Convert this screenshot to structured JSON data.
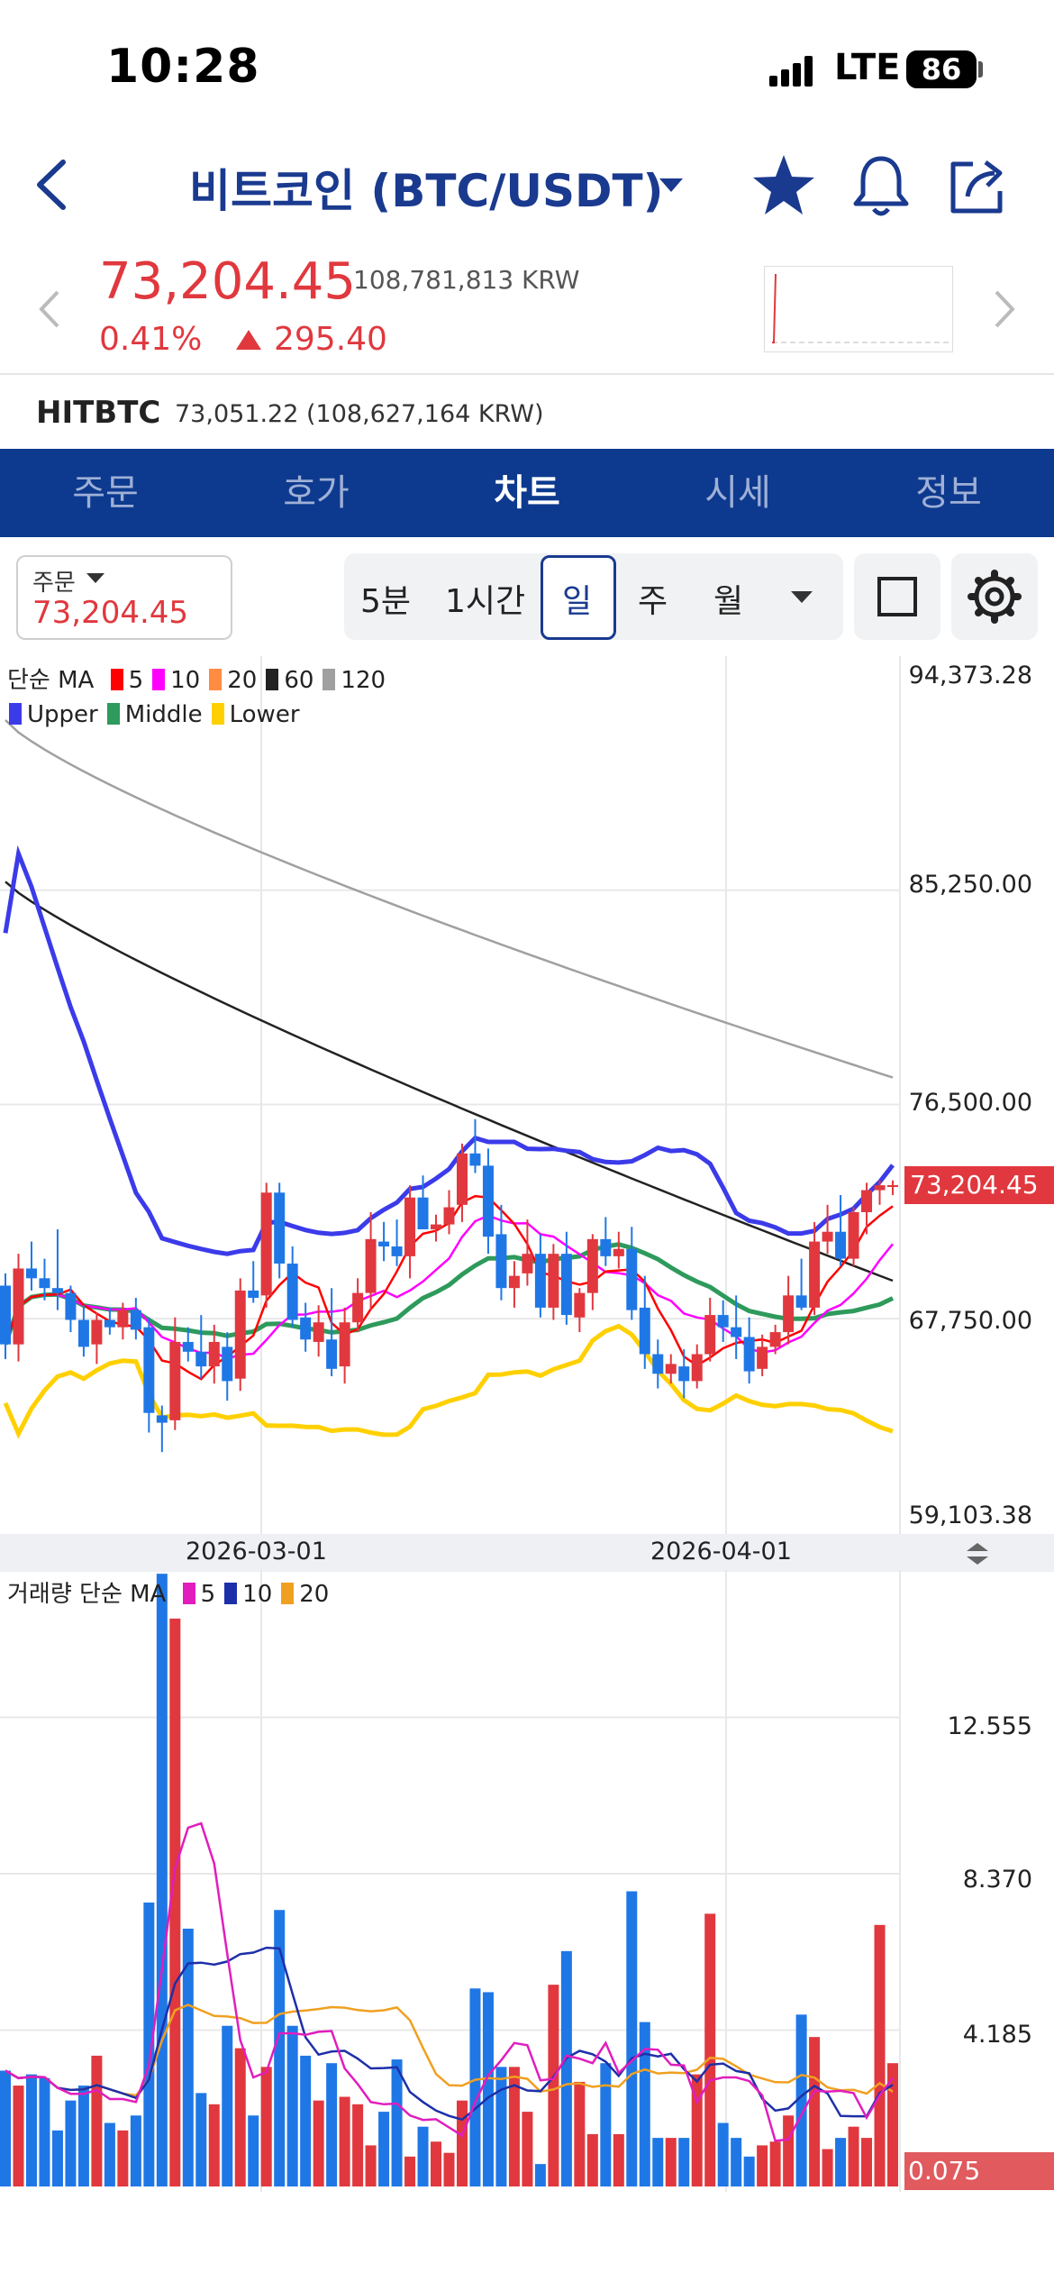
{
  "status_bar": {
    "time": "10:28",
    "network": "LTE",
    "battery": "86"
  },
  "header": {
    "title": "비트코인 (BTC/USDT)"
  },
  "price": {
    "current": "73,204.45",
    "krw": "108,781,813 KRW",
    "change_pct": "0.41%",
    "change_abs": "295.40"
  },
  "exchange": {
    "name": "HITBTC",
    "price": "73,051.22 (108,627,164 KRW)"
  },
  "tabs": [
    "주문",
    "호가",
    "차트",
    "시세",
    "정보"
  ],
  "active_tab": "차트",
  "order": {
    "label": "주문",
    "price": "73,204.45"
  },
  "periods": [
    "5분",
    "1시간",
    "일",
    "주",
    "월"
  ],
  "active_period": "일",
  "legend_price": {
    "ma_title": "단순 MA",
    "ma": [
      {
        "label": "5",
        "color": "#ff0000"
      },
      {
        "label": "10",
        "color": "#ff00ff"
      },
      {
        "label": "20",
        "color": "#ff8c42"
      },
      {
        "label": "60",
        "color": "#222222"
      },
      {
        "label": "120",
        "color": "#a0a0a0"
      }
    ],
    "bb": [
      {
        "label": "Upper",
        "color": "#3b3bea"
      },
      {
        "label": "Middle",
        "color": "#2e9a5b"
      },
      {
        "label": "Lower",
        "color": "#ffd000"
      }
    ]
  },
  "legend_volume": {
    "title": "거래량 단순 MA",
    "ma": [
      {
        "label": "5",
        "color": "#e11dbd"
      },
      {
        "label": "10",
        "color": "#1d2fa8"
      },
      {
        "label": "20",
        "color": "#f0a020"
      }
    ]
  },
  "price_axis": [
    "94,373.28",
    "85,250.00",
    "76,500.00",
    "67,750.00",
    "59,103.38"
  ],
  "current_price_tag": "73,204.45",
  "volume_axis": [
    "12.555",
    "8.370",
    "4.185"
  ],
  "volume_tag": "0.075",
  "date_labels": [
    "2026-03-01",
    "2026-04-01"
  ],
  "colors": {
    "up": "#e0383e",
    "down": "#1f77e6",
    "brand": "#0d3a8e"
  },
  "chart_data": {
    "type": "candlestick",
    "ylim": [
      59103.38,
      94373.28
    ],
    "volume_ylim": [
      0,
      16.5
    ],
    "candles": [
      [
        69100,
        69600,
        66100,
        66700,
        3.1
      ],
      [
        66700,
        70400,
        66000,
        69800,
        2.7
      ],
      [
        69800,
        70900,
        68900,
        69400,
        3.0
      ],
      [
        69400,
        70200,
        68500,
        69000,
        2.9
      ],
      [
        69000,
        71400,
        68100,
        68800,
        1.5
      ],
      [
        68800,
        69100,
        67200,
        67700,
        2.3
      ],
      [
        67700,
        68300,
        66200,
        66600,
        2.7
      ],
      [
        66700,
        68000,
        65900,
        67700,
        3.5
      ],
      [
        67700,
        68200,
        67100,
        67400,
        1.7
      ],
      [
        67400,
        68400,
        66900,
        68100,
        1.5
      ],
      [
        68100,
        68600,
        66900,
        67300,
        1.9
      ],
      [
        67400,
        67800,
        63100,
        63900,
        7.6
      ],
      [
        63800,
        64200,
        62300,
        63500,
        16.4
      ],
      [
        63600,
        67800,
        63200,
        66800,
        15.2
      ],
      [
        66800,
        67400,
        66000,
        66400,
        6.9
      ],
      [
        66400,
        67900,
        65300,
        65800,
        2.5
      ],
      [
        65800,
        67500,
        65100,
        66800,
        2.2
      ],
      [
        66600,
        67200,
        64400,
        65200,
        4.3
      ],
      [
        65300,
        69400,
        64800,
        68900,
        3.7
      ],
      [
        68900,
        70100,
        68400,
        68600,
        1.9
      ],
      [
        68700,
        73300,
        68200,
        72900,
        3.2
      ],
      [
        72900,
        73300,
        69400,
        70000,
        7.4
      ],
      [
        70000,
        70700,
        67400,
        67700,
        4.3
      ],
      [
        67800,
        68400,
        66400,
        66900,
        3.5
      ],
      [
        66800,
        68300,
        66200,
        67600,
        2.3
      ],
      [
        66900,
        69000,
        65400,
        65700,
        3.3
      ],
      [
        65800,
        68200,
        65100,
        67600,
        2.4
      ],
      [
        67600,
        69400,
        67200,
        68800,
        2.2
      ],
      [
        68800,
        72100,
        68100,
        71000,
        1.1
      ],
      [
        70900,
        71700,
        70100,
        70700,
        2.0
      ],
      [
        70700,
        71800,
        69900,
        70300,
        3.4
      ],
      [
        70300,
        73200,
        69400,
        72700,
        0.8
      ],
      [
        72700,
        73600,
        71400,
        71400,
        1.6
      ],
      [
        71400,
        72000,
        70900,
        71600,
        1.2
      ],
      [
        71600,
        73000,
        71200,
        72300,
        0.9
      ],
      [
        72400,
        74900,
        71700,
        74500,
        2.3
      ],
      [
        74500,
        75900,
        73700,
        74000,
        5.3
      ],
      [
        74000,
        74700,
        70400,
        71100,
        5.2
      ],
      [
        71200,
        72400,
        68500,
        69000,
        3.2
      ],
      [
        69000,
        70100,
        68200,
        69500,
        3.2
      ],
      [
        69600,
        71800,
        69100,
        70400,
        2.0
      ],
      [
        70400,
        71200,
        67800,
        68200,
        0.6
      ],
      [
        68200,
        70800,
        67700,
        70400,
        5.4
      ],
      [
        70400,
        71300,
        67500,
        67900,
        6.3
      ],
      [
        67800,
        69000,
        67200,
        68800,
        2.8
      ],
      [
        68800,
        71200,
        68100,
        71000,
        1.4
      ],
      [
        71000,
        71900,
        69900,
        70300,
        3.3
      ],
      [
        70300,
        71300,
        69800,
        70600,
        1.4
      ],
      [
        70600,
        71500,
        67700,
        68100,
        7.9
      ],
      [
        68200,
        69500,
        65700,
        66300,
        4.4
      ],
      [
        66300,
        66900,
        64900,
        65500,
        1.3
      ],
      [
        65500,
        66300,
        65100,
        65900,
        1.3
      ],
      [
        65800,
        66500,
        64500,
        65200,
        1.3
      ],
      [
        65200,
        66700,
        64900,
        66300,
        3.0
      ],
      [
        66300,
        68600,
        66000,
        67900,
        7.3
      ],
      [
        67900,
        68500,
        66800,
        67400,
        1.7
      ],
      [
        67400,
        68700,
        66100,
        67000,
        1.3
      ],
      [
        67000,
        67800,
        65100,
        65600,
        0.8
      ],
      [
        65700,
        67100,
        65400,
        66600,
        1.1
      ],
      [
        66600,
        67500,
        66300,
        67200,
        1.2
      ],
      [
        67200,
        69500,
        66700,
        68700,
        1.9
      ],
      [
        68700,
        70200,
        68100,
        68200,
        4.6
      ],
      [
        68200,
        71700,
        67900,
        70900,
        4.0
      ],
      [
        70900,
        72400,
        70400,
        71300,
        1.0
      ],
      [
        71300,
        72800,
        69900,
        70200,
        1.3
      ],
      [
        70200,
        72300,
        69900,
        72100,
        1.6
      ],
      [
        72100,
        73300,
        71200,
        73000,
        1.3
      ],
      [
        73000,
        73400,
        72400,
        73200,
        7.0
      ],
      [
        73200,
        73400,
        72800,
        73204,
        3.3
      ]
    ],
    "ma60": [
      85600,
      69300
    ],
    "ma120": [
      92200,
      77600
    ]
  }
}
